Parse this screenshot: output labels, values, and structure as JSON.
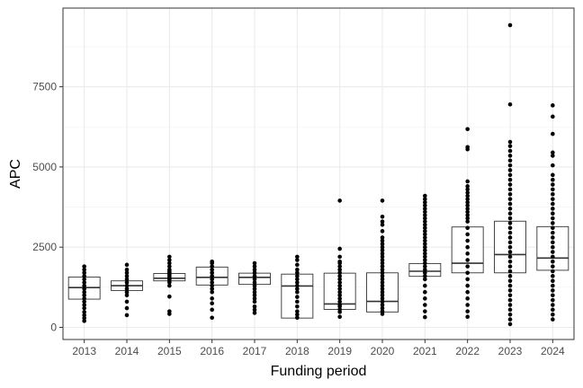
{
  "chart_data": {
    "type": "boxplot",
    "xlabel": "Funding period",
    "ylabel": "APC",
    "ylim": [
      -700,
      9750
    ],
    "y_ticks": [
      0,
      2500,
      5000,
      7500
    ],
    "y_tick_labels": [
      "0",
      "2500",
      "5000",
      "7500"
    ],
    "grid": true,
    "categories": [
      "2013",
      "2014",
      "2015",
      "2016",
      "2017",
      "2018",
      "2019",
      "2020",
      "2021",
      "2022",
      "2023",
      "2024"
    ],
    "boxes": [
      {
        "category": "2013",
        "q1": 880,
        "median": 1240,
        "q3": 1570
      },
      {
        "category": "2014",
        "q1": 1150,
        "median": 1300,
        "q3": 1450
      },
      {
        "category": "2015",
        "q1": 1450,
        "median": 1530,
        "q3": 1680
      },
      {
        "category": "2016",
        "q1": 1320,
        "median": 1560,
        "q3": 1880
      },
      {
        "category": "2017",
        "q1": 1340,
        "median": 1560,
        "q3": 1690
      },
      {
        "category": "2018",
        "q1": 290,
        "median": 1290,
        "q3": 1660
      },
      {
        "category": "2019",
        "q1": 560,
        "median": 730,
        "q3": 1690
      },
      {
        "category": "2020",
        "q1": 480,
        "median": 810,
        "q3": 1700
      },
      {
        "category": "2021",
        "q1": 1590,
        "median": 1750,
        "q3": 1990
      },
      {
        "category": "2022",
        "q1": 1700,
        "median": 2000,
        "q3": 3130
      },
      {
        "category": "2023",
        "q1": 1700,
        "median": 2270,
        "q3": 3310
      },
      {
        "category": "2024",
        "q1": 1780,
        "median": 2160,
        "q3": 3140
      }
    ],
    "points": [
      {
        "category": "2013",
        "values": [
          200,
          290,
          380,
          480,
          600,
          700,
          800,
          900,
          1000,
          1100,
          1200,
          1300,
          1400,
          1500,
          1600,
          1700,
          1800,
          1900
        ]
      },
      {
        "category": "2014",
        "values": [
          380,
          600,
          800,
          1000,
          1100,
          1200,
          1300,
          1400,
          1500,
          1600,
          1700,
          1800,
          1950
        ]
      },
      {
        "category": "2015",
        "values": [
          420,
          500,
          960,
          1300,
          1400,
          1450,
          1500,
          1550,
          1600,
          1650,
          1700,
          1750,
          1800,
          1900,
          2000,
          2100,
          2200
        ]
      },
      {
        "category": "2016",
        "values": [
          300,
          550,
          750,
          900,
          1100,
          1200,
          1300,
          1400,
          1500,
          1600,
          1700,
          1800,
          1900,
          2000,
          2050
        ]
      },
      {
        "category": "2017",
        "values": [
          450,
          550,
          650,
          800,
          900,
          1000,
          1100,
          1200,
          1300,
          1400,
          1500,
          1600,
          1700,
          1800,
          1900,
          2000
        ]
      },
      {
        "category": "2018",
        "values": [
          300,
          400,
          500,
          650,
          800,
          950,
          1100,
          1200,
          1300,
          1400,
          1500,
          1600,
          1700,
          1800,
          1950,
          2100,
          2200
        ]
      },
      {
        "category": "2019",
        "values": [
          330,
          480,
          560,
          650,
          700,
          800,
          900,
          1000,
          1100,
          1200,
          1300,
          1400,
          1500,
          1600,
          1700,
          1800,
          1900,
          2000,
          2050,
          2200,
          2450,
          3950
        ]
      },
      {
        "category": "2020",
        "values": [
          420,
          500,
          600,
          700,
          800,
          900,
          1000,
          1100,
          1200,
          1300,
          1400,
          1500,
          1600,
          1700,
          1800,
          1900,
          2000,
          2100,
          2200,
          2300,
          2400,
          2500,
          2600,
          2700,
          2800,
          3000,
          3200,
          3300,
          3450,
          3950
        ]
      },
      {
        "category": "2021",
        "values": [
          320,
          500,
          700,
          900,
          1100,
          1300,
          1500,
          1600,
          1700,
          1800,
          1900,
          2000,
          2100,
          2200,
          2300,
          2400,
          2500,
          2600,
          2700,
          2800,
          2900,
          3000,
          3100,
          3200,
          3300,
          3400,
          3500,
          3600,
          3700,
          3800,
          3900,
          4000,
          4100
        ]
      },
      {
        "category": "2022",
        "values": [
          330,
          500,
          700,
          900,
          1100,
          1300,
          1500,
          1700,
          1900,
          2100,
          2300,
          2500,
          2700,
          2900,
          3100,
          3300,
          3400,
          3500,
          3600,
          3700,
          3800,
          3900,
          4000,
          4100,
          4200,
          4300,
          4400,
          4550,
          5550,
          5620,
          6180
        ]
      },
      {
        "category": "2023",
        "values": [
          100,
          250,
          400,
          550,
          700,
          850,
          1000,
          1150,
          1300,
          1450,
          1600,
          1750,
          1900,
          2050,
          2200,
          2350,
          2500,
          2650,
          2800,
          2950,
          3100,
          3250,
          3400,
          3550,
          3700,
          3850,
          4000,
          4150,
          4300,
          4450,
          4600,
          4750,
          4900,
          5050,
          5200,
          5350,
          5500,
          5650,
          5780,
          6950,
          9420
        ]
      },
      {
        "category": "2024",
        "values": [
          250,
          400,
          550,
          700,
          850,
          1000,
          1150,
          1300,
          1450,
          1600,
          1750,
          1900,
          2050,
          2200,
          2350,
          2500,
          2650,
          2800,
          2950,
          3100,
          3250,
          3400,
          3550,
          3700,
          3850,
          4000,
          4150,
          4300,
          4450,
          4600,
          4750,
          5050,
          5350,
          5450,
          6030,
          6570,
          6920
        ]
      }
    ]
  }
}
